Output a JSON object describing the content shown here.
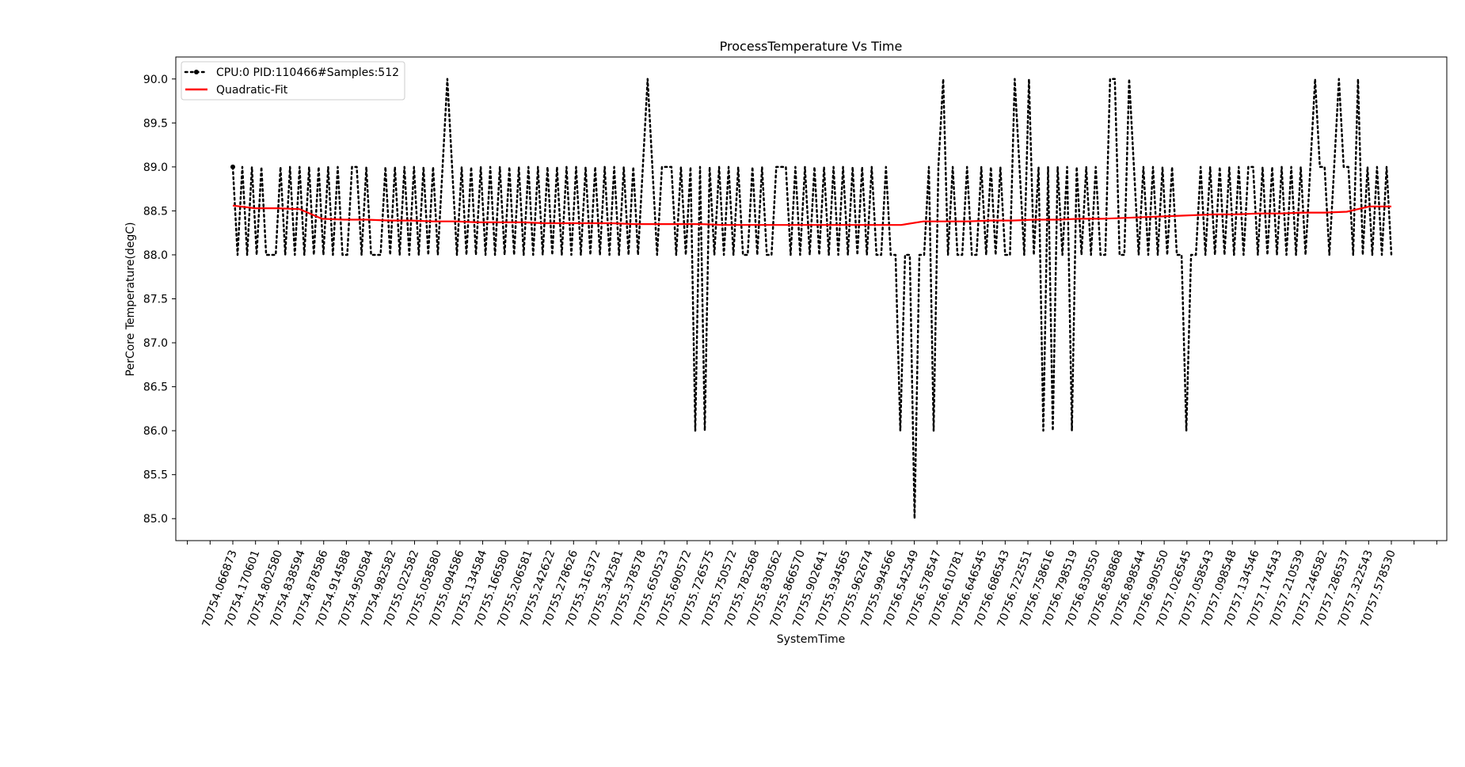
{
  "chart_data": {
    "type": "line",
    "title": "ProcessTemperature Vs Time",
    "xlabel": "SystemTime",
    "ylabel": "PerCore Temperature(degC)",
    "ylim": [
      84.75,
      90.25
    ],
    "yticks": [
      85.0,
      85.5,
      86.0,
      86.5,
      87.0,
      87.5,
      88.0,
      88.5,
      89.0,
      89.5,
      90.0
    ],
    "ytick_labels": [
      "85.0",
      "85.5",
      "86.0",
      "86.5",
      "87.0",
      "87.5",
      "88.0",
      "88.5",
      "89.0",
      "89.5",
      "90.0"
    ],
    "xtick_labels": [
      "70754.066873",
      "70754.170601",
      "70754.802580",
      "70754.838594",
      "70754.878586",
      "70754.914588",
      "70754.950584",
      "70754.982582",
      "70755.022582",
      "70755.058580",
      "70755.094586",
      "70755.134584",
      "70755.166580",
      "70755.206581",
      "70755.242622",
      "70755.278626",
      "70755.316372",
      "70755.342581",
      "70755.378578",
      "70755.650523",
      "70755.690572",
      "70755.726575",
      "70755.750572",
      "70755.782568",
      "70755.830562",
      "70755.866570",
      "70755.902641",
      "70755.934565",
      "70755.962674",
      "70755.994566",
      "70756.542549",
      "70756.578547",
      "70756.610781",
      "70756.646545",
      "70756.686543",
      "70756.722551",
      "70756.758616",
      "70756.798519",
      "70756.830550",
      "70756.858868",
      "70756.898544",
      "70756.990550",
      "70757.026545",
      "70757.058543",
      "70757.098548",
      "70757.134546",
      "70757.174543",
      "70757.210539",
      "70757.246582",
      "70757.286537",
      "70757.322543",
      "70757.578530"
    ],
    "grid": false,
    "legend_position": "top-left",
    "series": [
      {
        "name": "CPU:0 PID:110466#Samples:512",
        "color": "#000000",
        "style": "dotted",
        "marker": "dot",
        "num_samples": 512,
        "values": [
          89,
          88,
          89,
          88,
          89,
          88,
          89,
          88,
          88,
          88,
          89,
          88,
          89,
          88,
          89,
          88,
          89,
          88,
          89,
          88,
          89,
          88,
          89,
          88,
          88,
          89,
          89,
          88,
          89,
          88,
          88,
          88,
          89,
          88,
          89,
          88,
          89,
          88,
          89,
          88,
          89,
          88,
          89,
          88,
          89,
          90,
          89,
          88,
          89,
          88,
          89,
          88,
          89,
          88,
          89,
          88,
          89,
          88,
          89,
          88,
          89,
          88,
          89,
          88,
          89,
          88,
          89,
          88,
          89,
          88,
          89,
          88,
          89,
          88,
          89,
          88,
          89,
          88,
          89,
          88,
          89,
          88,
          89,
          88,
          89,
          88,
          89,
          90,
          89,
          88,
          89,
          89,
          89,
          88,
          89,
          88,
          89,
          86,
          89,
          86,
          89,
          88,
          89,
          88,
          89,
          88,
          89,
          88,
          88,
          89,
          88,
          89,
          88,
          88,
          89,
          89,
          89,
          88,
          89,
          88,
          89,
          88,
          89,
          88,
          89,
          88,
          89,
          88,
          89,
          88,
          89,
          88,
          89,
          88,
          89,
          88,
          88,
          89,
          88,
          88,
          86,
          88,
          88,
          85,
          88,
          88,
          89,
          86,
          89,
          90,
          88,
          89,
          88,
          88,
          89,
          88,
          88,
          89,
          88,
          89,
          88,
          89,
          88,
          88,
          90,
          89,
          88,
          90,
          88,
          89,
          86,
          89,
          86,
          89,
          88,
          89,
          86,
          89,
          88,
          89,
          88,
          89,
          88,
          88,
          90,
          90,
          88,
          88,
          90,
          89,
          88,
          89,
          88,
          89,
          88,
          89,
          88,
          89,
          88,
          88,
          86,
          88,
          88,
          89,
          88,
          89,
          88,
          89,
          88,
          89,
          88,
          89,
          88,
          89,
          89,
          88,
          89,
          88,
          89,
          88,
          89,
          88,
          89,
          88,
          89,
          88,
          89,
          90,
          89,
          89,
          88,
          89,
          90,
          89,
          89,
          88,
          90,
          88,
          89,
          88,
          89,
          88,
          89,
          88
        ]
      },
      {
        "name": "Quadratic-Fit",
        "color": "#ff0000",
        "style": "solid",
        "values": [
          88.56,
          88.53,
          88.53,
          88.52,
          88.41,
          88.4,
          88.4,
          88.39,
          88.39,
          88.38,
          88.38,
          88.37,
          88.37,
          88.37,
          88.36,
          88.36,
          88.36,
          88.36,
          88.35,
          88.35,
          88.35,
          88.35,
          88.34,
          88.34,
          88.34,
          88.34,
          88.34,
          88.34,
          88.34,
          88.34,
          88.34,
          88.38,
          88.38,
          88.38,
          88.39,
          88.39,
          88.4,
          88.4,
          88.41,
          88.41,
          88.42,
          88.43,
          88.44,
          88.45,
          88.46,
          88.46,
          88.47,
          88.47,
          88.48,
          88.48,
          88.49,
          88.55,
          88.55
        ]
      }
    ]
  }
}
